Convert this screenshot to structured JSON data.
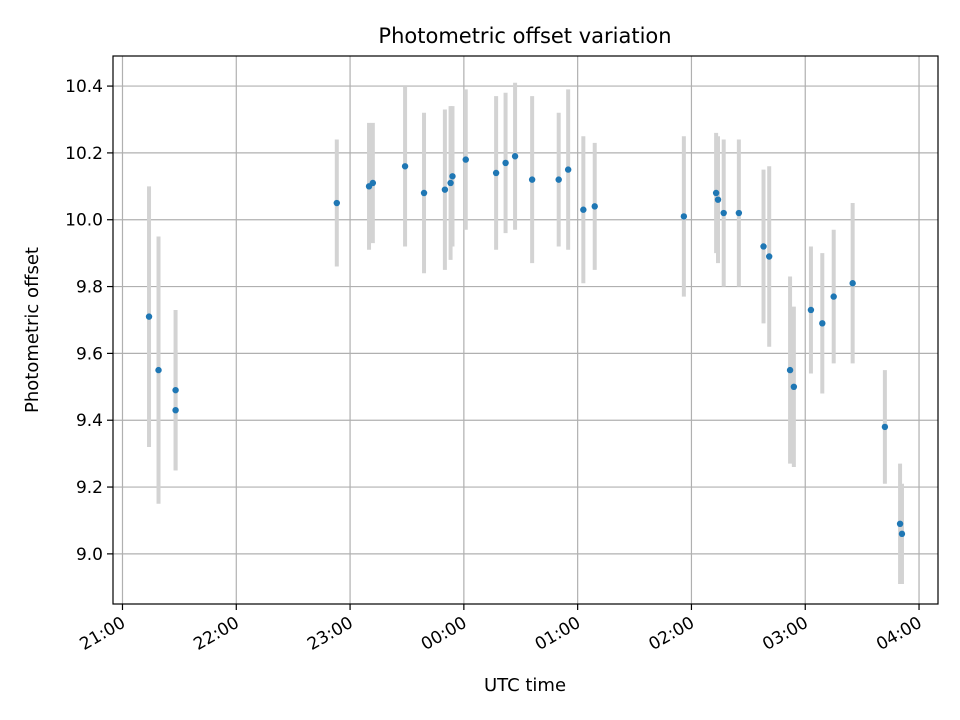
{
  "chart_data": {
    "type": "scatter",
    "title": "Photometric offset variation",
    "xlabel": "UTC time",
    "ylabel": "Photometric offset",
    "grid": true,
    "x_tick_labels": [
      "21:00",
      "22:00",
      "23:00",
      "00:00",
      "01:00",
      "02:00",
      "03:00",
      "04:00"
    ],
    "y_tick_labels": [
      "9.0",
      "9.2",
      "9.4",
      "9.6",
      "9.8",
      "10.0",
      "10.2",
      "10.4"
    ],
    "xlim": [
      "20:55",
      "04:10"
    ],
    "ylim": [
      8.85,
      10.49
    ],
    "colors": {
      "point": "#1f77b4",
      "errorbar": "#d3d3d3",
      "grid": "#b0b0b0"
    },
    "points": [
      {
        "x": "21:14",
        "y": 9.71,
        "err": 0.39
      },
      {
        "x": "21:19",
        "y": 9.55,
        "err": 0.4
      },
      {
        "x": "21:28",
        "y": 9.49,
        "err": 0.24
      },
      {
        "x": "21:28",
        "y": 9.43,
        "err": 0.18
      },
      {
        "x": "22:53",
        "y": 10.05,
        "err": 0.19
      },
      {
        "x": "23:10",
        "y": 10.1,
        "err": 0.19
      },
      {
        "x": "23:12",
        "y": 10.11,
        "err": 0.18
      },
      {
        "x": "23:29",
        "y": 10.16,
        "err": 0.24
      },
      {
        "x": "23:39",
        "y": 10.08,
        "err": 0.24
      },
      {
        "x": "23:50",
        "y": 10.09,
        "err": 0.24
      },
      {
        "x": "23:53",
        "y": 10.11,
        "err": 0.23
      },
      {
        "x": "23:54",
        "y": 10.13,
        "err": 0.21
      },
      {
        "x": "00:01",
        "y": 10.18,
        "err": 0.21
      },
      {
        "x": "00:17",
        "y": 10.14,
        "err": 0.23
      },
      {
        "x": "00:22",
        "y": 10.17,
        "err": 0.21
      },
      {
        "x": "00:27",
        "y": 10.19,
        "err": 0.22
      },
      {
        "x": "00:36",
        "y": 10.12,
        "err": 0.25
      },
      {
        "x": "00:50",
        "y": 10.12,
        "err": 0.2
      },
      {
        "x": "00:55",
        "y": 10.15,
        "err": 0.24
      },
      {
        "x": "01:03",
        "y": 10.03,
        "err": 0.22
      },
      {
        "x": "01:09",
        "y": 10.04,
        "err": 0.19
      },
      {
        "x": "01:56",
        "y": 10.01,
        "err": 0.24
      },
      {
        "x": "02:13",
        "y": 10.08,
        "err": 0.18
      },
      {
        "x": "02:14",
        "y": 10.06,
        "err": 0.19
      },
      {
        "x": "02:17",
        "y": 10.02,
        "err": 0.22
      },
      {
        "x": "02:25",
        "y": 10.02,
        "err": 0.22
      },
      {
        "x": "02:38",
        "y": 9.92,
        "err": 0.23
      },
      {
        "x": "02:41",
        "y": 9.89,
        "err": 0.27
      },
      {
        "x": "02:52",
        "y": 9.55,
        "err": 0.28
      },
      {
        "x": "02:54",
        "y": 9.5,
        "err": 0.24
      },
      {
        "x": "03:03",
        "y": 9.73,
        "err": 0.19
      },
      {
        "x": "03:09",
        "y": 9.69,
        "err": 0.21
      },
      {
        "x": "03:15",
        "y": 9.77,
        "err": 0.2
      },
      {
        "x": "03:25",
        "y": 9.81,
        "err": 0.24
      },
      {
        "x": "03:42",
        "y": 9.38,
        "err": 0.17
      },
      {
        "x": "03:50",
        "y": 9.09,
        "err": 0.18
      },
      {
        "x": "03:51",
        "y": 9.06,
        "err": 0.15
      }
    ]
  }
}
